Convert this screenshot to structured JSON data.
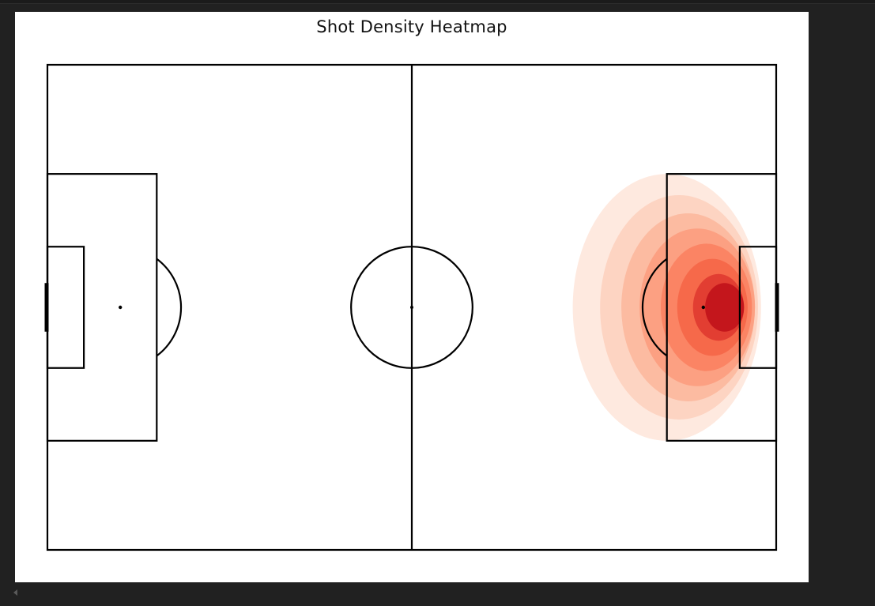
{
  "chart_data": {
    "type": "heatmap",
    "title": "Shot Density Heatmap",
    "xlabel": "",
    "ylabel": "",
    "xlim": [
      0,
      120
    ],
    "ylim": [
      0,
      80
    ],
    "grid": false,
    "colormap": "Reds",
    "pitch": {
      "length": 120,
      "width": 80,
      "line_color": "#000000",
      "background": "#ffffff"
    },
    "density_levels": [
      {
        "level": 1,
        "color": "#fee9df",
        "center": [
          102.0,
          40.0
        ],
        "rx": 15.5,
        "ry": 22.0
      },
      {
        "level": 2,
        "color": "#fdd4c2",
        "center": [
          104.0,
          40.0
        ],
        "rx": 13.0,
        "ry": 18.5
      },
      {
        "level": 3,
        "color": "#fcbba1",
        "center": [
          105.5,
          40.0
        ],
        "rx": 11.0,
        "ry": 15.5
      },
      {
        "level": 4,
        "color": "#fca082",
        "center": [
          107.0,
          40.0
        ],
        "rx": 9.5,
        "ry": 13.0
      },
      {
        "level": 5,
        "color": "#fb8464",
        "center": [
          108.5,
          40.0
        ],
        "rx": 7.5,
        "ry": 10.5
      },
      {
        "level": 6,
        "color": "#f6694a",
        "center": [
          109.5,
          40.0
        ],
        "rx": 5.8,
        "ry": 8.0
      },
      {
        "level": 7,
        "color": "#e23e32",
        "center": [
          110.5,
          40.0
        ],
        "rx": 4.2,
        "ry": 5.5
      },
      {
        "level": 8,
        "color": "#c4161c",
        "center": [
          111.5,
          40.0
        ],
        "rx": 3.2,
        "ry": 4.0
      }
    ]
  }
}
